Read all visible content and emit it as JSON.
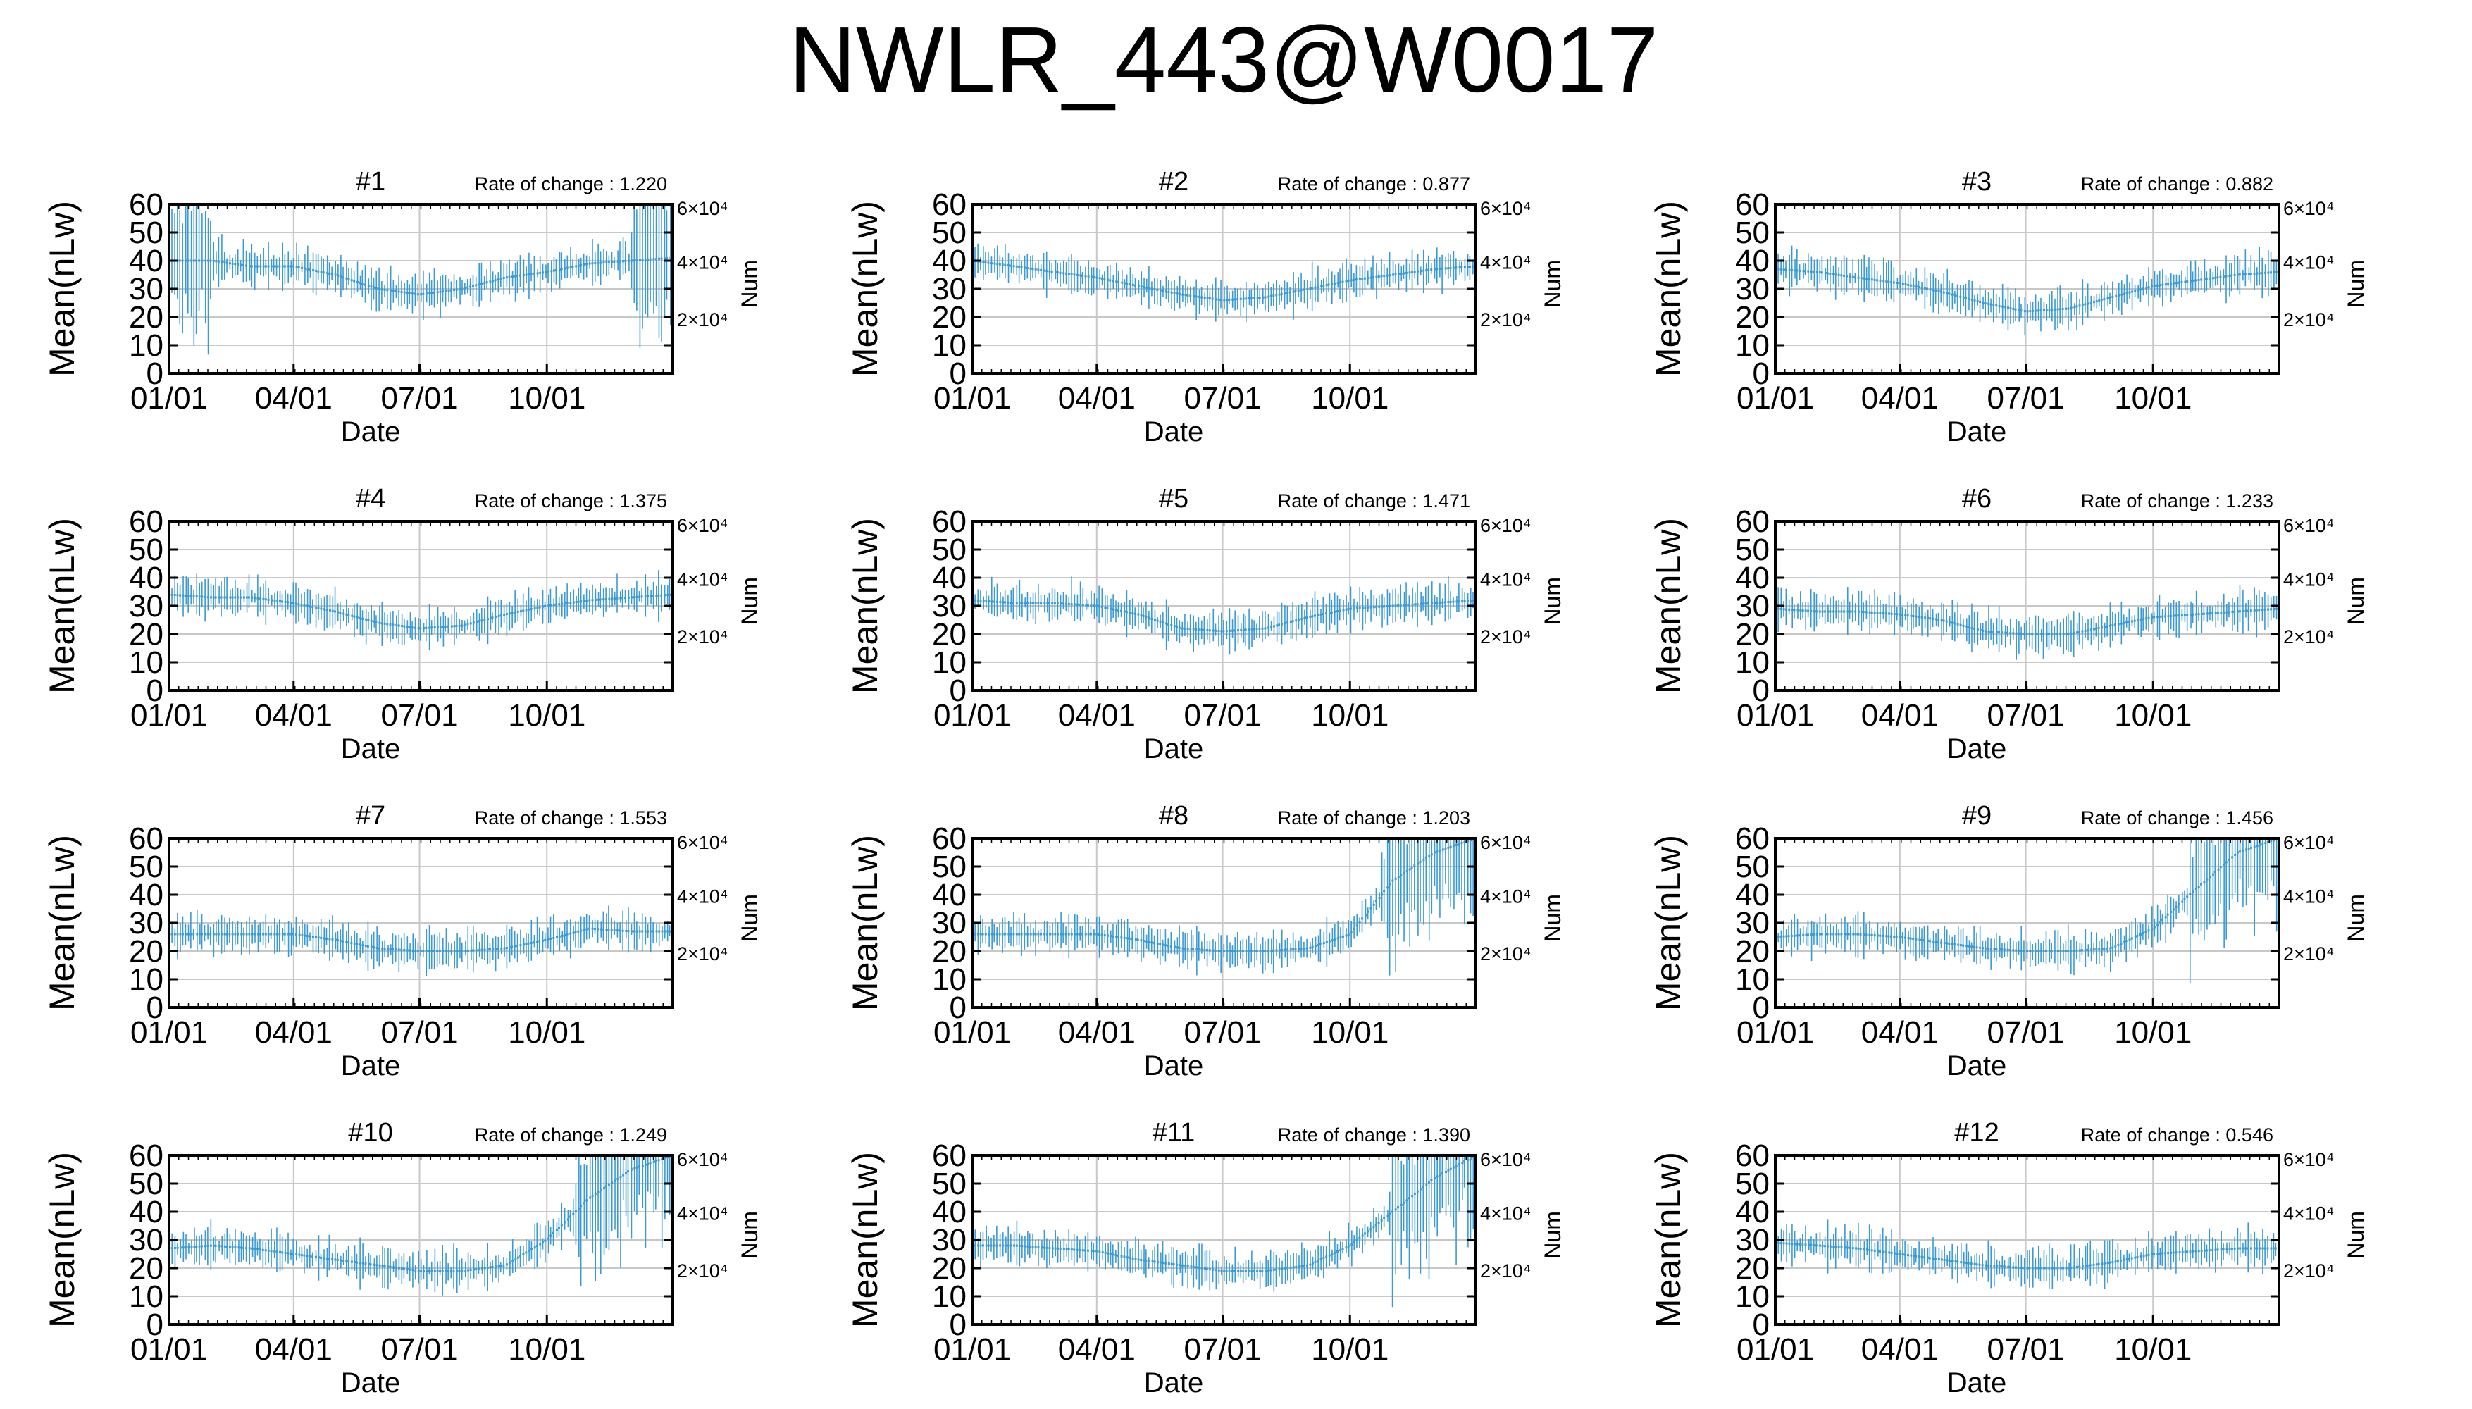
{
  "title": "NWLR_443@W0017",
  "colors": {
    "data": "#3a9ad6",
    "grid": "#c8c8c8",
    "axis": "#000000"
  },
  "chart_data": [
    {
      "type": "line",
      "title": "#1",
      "rate_label": "Rate of change : 1.220",
      "xlabel": "Date",
      "ylabel": "Mean(nLw)",
      "y2label": "Num",
      "xticks": [
        "01/01",
        "04/01",
        "07/01",
        "10/01"
      ],
      "yticks": [
        "0",
        "10",
        "20",
        "30",
        "40",
        "50",
        "60"
      ],
      "y2ticks": [
        "2×10⁴",
        "4×10⁴",
        "6×10⁴"
      ],
      "ylim": [
        0,
        60
      ],
      "grid": true,
      "series": [
        {
          "x": [
            "01/01",
            "02/01",
            "03/01",
            "04/01",
            "05/01",
            "06/01",
            "07/01",
            "08/01",
            "09/01",
            "10/01",
            "11/01",
            "12/01",
            "12/31"
          ],
          "values": [
            40,
            40,
            38,
            38,
            35,
            30,
            28,
            30,
            34,
            36,
            39,
            40,
            41
          ]
        }
      ]
    },
    {
      "type": "line",
      "title": "#2",
      "rate_label": "Rate of change : 0.877",
      "xlabel": "Date",
      "ylabel": "Mean(nLw)",
      "y2label": "Num",
      "xticks": [
        "01/01",
        "04/01",
        "07/01",
        "10/01"
      ],
      "yticks": [
        "0",
        "10",
        "20",
        "30",
        "40",
        "50",
        "60"
      ],
      "y2ticks": [
        "2×10⁴",
        "4×10⁴",
        "6×10⁴"
      ],
      "ylim": [
        0,
        60
      ],
      "grid": true,
      "series": [
        {
          "x": [
            "01/01",
            "02/01",
            "03/01",
            "04/01",
            "05/01",
            "06/01",
            "07/01",
            "08/01",
            "09/01",
            "10/01",
            "11/01",
            "12/01",
            "12/31"
          ],
          "values": [
            40,
            38,
            36,
            34,
            31,
            28,
            26,
            27,
            30,
            33,
            35,
            37,
            38
          ]
        }
      ]
    },
    {
      "type": "line",
      "title": "#3",
      "rate_label": "Rate of change : 0.882",
      "xlabel": "Date",
      "ylabel": "Mean(nLw)",
      "y2label": "Num",
      "xticks": [
        "01/01",
        "04/01",
        "07/01",
        "10/01"
      ],
      "yticks": [
        "0",
        "10",
        "20",
        "30",
        "40",
        "50",
        "60"
      ],
      "y2ticks": [
        "2×10⁴",
        "4×10⁴",
        "6×10⁴"
      ],
      "ylim": [
        0,
        60
      ],
      "grid": true,
      "series": [
        {
          "x": [
            "01/01",
            "02/01",
            "03/01",
            "04/01",
            "05/01",
            "06/01",
            "07/01",
            "08/01",
            "09/01",
            "10/01",
            "11/01",
            "12/01",
            "12/31"
          ],
          "values": [
            37,
            36,
            34,
            32,
            29,
            25,
            22,
            23,
            27,
            31,
            33,
            35,
            36
          ]
        }
      ]
    },
    {
      "type": "line",
      "title": "#4",
      "rate_label": "Rate of change : 1.375",
      "xlabel": "Date",
      "ylabel": "Mean(nLw)",
      "y2label": "Num",
      "xticks": [
        "01/01",
        "04/01",
        "07/01",
        "10/01"
      ],
      "yticks": [
        "0",
        "10",
        "20",
        "30",
        "40",
        "50",
        "60"
      ],
      "y2ticks": [
        "2×10⁴",
        "4×10⁴",
        "6×10⁴"
      ],
      "ylim": [
        0,
        60
      ],
      "grid": true,
      "series": [
        {
          "x": [
            "01/01",
            "02/01",
            "03/01",
            "04/01",
            "05/01",
            "06/01",
            "07/01",
            "08/01",
            "09/01",
            "10/01",
            "11/01",
            "12/01",
            "12/31"
          ],
          "values": [
            34,
            33,
            33,
            31,
            28,
            24,
            22,
            23,
            27,
            30,
            32,
            33,
            34
          ]
        }
      ]
    },
    {
      "type": "line",
      "title": "#5",
      "rate_label": "Rate of change : 1.471",
      "xlabel": "Date",
      "ylabel": "Mean(nLw)",
      "y2label": "Num",
      "xticks": [
        "01/01",
        "04/01",
        "07/01",
        "10/01"
      ],
      "yticks": [
        "0",
        "10",
        "20",
        "30",
        "40",
        "50",
        "60"
      ],
      "y2ticks": [
        "2×10⁴",
        "4×10⁴",
        "6×10⁴"
      ],
      "ylim": [
        0,
        60
      ],
      "grid": true,
      "series": [
        {
          "x": [
            "01/01",
            "02/01",
            "03/01",
            "04/01",
            "05/01",
            "06/01",
            "07/01",
            "08/01",
            "09/01",
            "10/01",
            "11/01",
            "12/01",
            "12/31"
          ],
          "values": [
            32,
            31,
            31,
            30,
            27,
            22,
            21,
            22,
            26,
            29,
            30,
            31,
            32
          ]
        }
      ]
    },
    {
      "type": "line",
      "title": "#6",
      "rate_label": "Rate of change : 1.233",
      "xlabel": "Date",
      "ylabel": "Mean(nLw)",
      "y2label": "Num",
      "xticks": [
        "01/01",
        "04/01",
        "07/01",
        "10/01"
      ],
      "yticks": [
        "0",
        "10",
        "20",
        "30",
        "40",
        "50",
        "60"
      ],
      "y2ticks": [
        "2×10⁴",
        "4×10⁴",
        "6×10⁴"
      ],
      "ylim": [
        0,
        60
      ],
      "grid": true,
      "series": [
        {
          "x": [
            "01/01",
            "02/01",
            "03/01",
            "04/01",
            "05/01",
            "06/01",
            "07/01",
            "08/01",
            "09/01",
            "10/01",
            "11/01",
            "12/01",
            "12/31"
          ],
          "values": [
            29,
            28,
            28,
            27,
            25,
            21,
            20,
            20,
            23,
            26,
            27,
            28,
            29
          ]
        }
      ]
    },
    {
      "type": "line",
      "title": "#7",
      "rate_label": "Rate of change : 1.553",
      "xlabel": "Date",
      "ylabel": "Mean(nLw)",
      "y2label": "Num",
      "xticks": [
        "01/01",
        "04/01",
        "07/01",
        "10/01"
      ],
      "yticks": [
        "0",
        "10",
        "20",
        "30",
        "40",
        "50",
        "60"
      ],
      "y2ticks": [
        "2×10⁴",
        "4×10⁴",
        "6×10⁴"
      ],
      "ylim": [
        0,
        60
      ],
      "grid": true,
      "series": [
        {
          "x": [
            "01/01",
            "02/01",
            "03/01",
            "04/01",
            "05/01",
            "06/01",
            "07/01",
            "08/01",
            "09/01",
            "10/01",
            "11/01",
            "12/01",
            "12/31"
          ],
          "values": [
            26,
            26,
            26,
            26,
            24,
            21,
            20,
            20,
            21,
            24,
            28,
            27,
            27
          ]
        }
      ]
    },
    {
      "type": "line",
      "title": "#8",
      "rate_label": "Rate of change : 1.203",
      "xlabel": "Date",
      "ylabel": "Mean(nLw)",
      "y2label": "Num",
      "xticks": [
        "01/01",
        "04/01",
        "07/01",
        "10/01"
      ],
      "yticks": [
        "0",
        "10",
        "20",
        "30",
        "40",
        "50",
        "60"
      ],
      "y2ticks": [
        "2×10⁴",
        "4×10⁴",
        "6×10⁴"
      ],
      "ylim": [
        0,
        60
      ],
      "grid": true,
      "series": [
        {
          "x": [
            "01/01",
            "02/01",
            "03/01",
            "04/01",
            "05/01",
            "06/01",
            "07/01",
            "08/01",
            "09/01",
            "10/01",
            "11/01",
            "12/01",
            "12/31"
          ],
          "values": [
            26,
            26,
            26,
            26,
            24,
            21,
            20,
            20,
            21,
            26,
            45,
            55,
            60
          ]
        }
      ]
    },
    {
      "type": "line",
      "title": "#9",
      "rate_label": "Rate of change : 1.456",
      "xlabel": "Date",
      "ylabel": "Mean(nLw)",
      "y2label": "Num",
      "xticks": [
        "01/01",
        "04/01",
        "07/01",
        "10/01"
      ],
      "yticks": [
        "0",
        "10",
        "20",
        "30",
        "40",
        "50",
        "60"
      ],
      "y2ticks": [
        "2×10⁴",
        "4×10⁴",
        "6×10⁴"
      ],
      "ylim": [
        0,
        60
      ],
      "grid": true,
      "series": [
        {
          "x": [
            "01/01",
            "02/01",
            "03/01",
            "04/01",
            "05/01",
            "06/01",
            "07/01",
            "08/01",
            "09/01",
            "10/01",
            "11/01",
            "12/01",
            "12/31"
          ],
          "values": [
            25,
            26,
            26,
            25,
            23,
            21,
            20,
            20,
            21,
            28,
            42,
            55,
            60
          ]
        }
      ]
    },
    {
      "type": "line",
      "title": "#10",
      "rate_label": "Rate of change : 1.249",
      "xlabel": "Date",
      "ylabel": "Mean(nLw)",
      "y2label": "Num",
      "xticks": [
        "01/01",
        "04/01",
        "07/01",
        "10/01"
      ],
      "yticks": [
        "0",
        "10",
        "20",
        "30",
        "40",
        "50",
        "60"
      ],
      "y2ticks": [
        "2×10⁴",
        "4×10⁴",
        "6×10⁴"
      ],
      "ylim": [
        0,
        60
      ],
      "grid": true,
      "series": [
        {
          "x": [
            "01/01",
            "02/01",
            "03/01",
            "04/01",
            "05/01",
            "06/01",
            "07/01",
            "08/01",
            "09/01",
            "10/01",
            "11/01",
            "12/01",
            "12/31"
          ],
          "values": [
            27,
            28,
            27,
            25,
            23,
            21,
            19,
            19,
            21,
            30,
            45,
            55,
            60
          ]
        }
      ]
    },
    {
      "type": "line",
      "title": "#11",
      "rate_label": "Rate of change : 1.390",
      "xlabel": "Date",
      "ylabel": "Mean(nLw)",
      "y2label": "Num",
      "xticks": [
        "01/01",
        "04/01",
        "07/01",
        "10/01"
      ],
      "yticks": [
        "0",
        "10",
        "20",
        "30",
        "40",
        "50",
        "60"
      ],
      "y2ticks": [
        "2×10⁴",
        "4×10⁴",
        "6×10⁴"
      ],
      "ylim": [
        0,
        60
      ],
      "grid": true,
      "series": [
        {
          "x": [
            "01/01",
            "02/01",
            "03/01",
            "04/01",
            "05/01",
            "06/01",
            "07/01",
            "08/01",
            "09/01",
            "10/01",
            "11/01",
            "12/01",
            "12/31"
          ],
          "values": [
            28,
            28,
            27,
            26,
            23,
            21,
            19,
            19,
            21,
            28,
            40,
            52,
            60
          ]
        }
      ]
    },
    {
      "type": "line",
      "title": "#12",
      "rate_label": "Rate of change : 0.546",
      "xlabel": "Date",
      "ylabel": "Mean(nLw)",
      "y2label": "Num",
      "xticks": [
        "01/01",
        "04/01",
        "07/01",
        "10/01"
      ],
      "yticks": [
        "0",
        "10",
        "20",
        "30",
        "40",
        "50",
        "60"
      ],
      "y2ticks": [
        "2×10⁴",
        "4×10⁴",
        "6×10⁴"
      ],
      "ylim": [
        0,
        60
      ],
      "grid": true,
      "series": [
        {
          "x": [
            "01/01",
            "02/01",
            "03/01",
            "04/01",
            "05/01",
            "06/01",
            "07/01",
            "08/01",
            "09/01",
            "10/01",
            "11/01",
            "12/01",
            "12/31"
          ],
          "values": [
            29,
            28,
            27,
            25,
            23,
            21,
            20,
            20,
            22,
            25,
            26,
            27,
            27
          ]
        }
      ]
    }
  ]
}
